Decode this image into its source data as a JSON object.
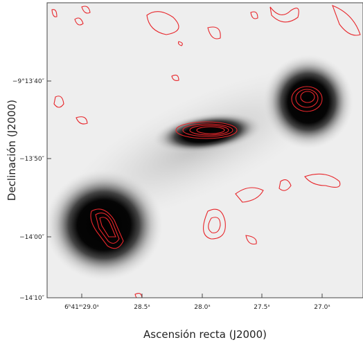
{
  "figure": {
    "x_label": "Ascensión recta (J2000)",
    "y_label": "Declinación (J2000)",
    "x_ticks": [
      "6ʰ41ᵐ29.0ˢ",
      "28.5ˢ",
      "28.0ˢ",
      "27.5ˢ",
      "27.0ˢ"
    ],
    "y_ticks": [
      "−9°13′40″",
      "−13′50″",
      "−14′00″",
      "−14′10″"
    ]
  }
}
